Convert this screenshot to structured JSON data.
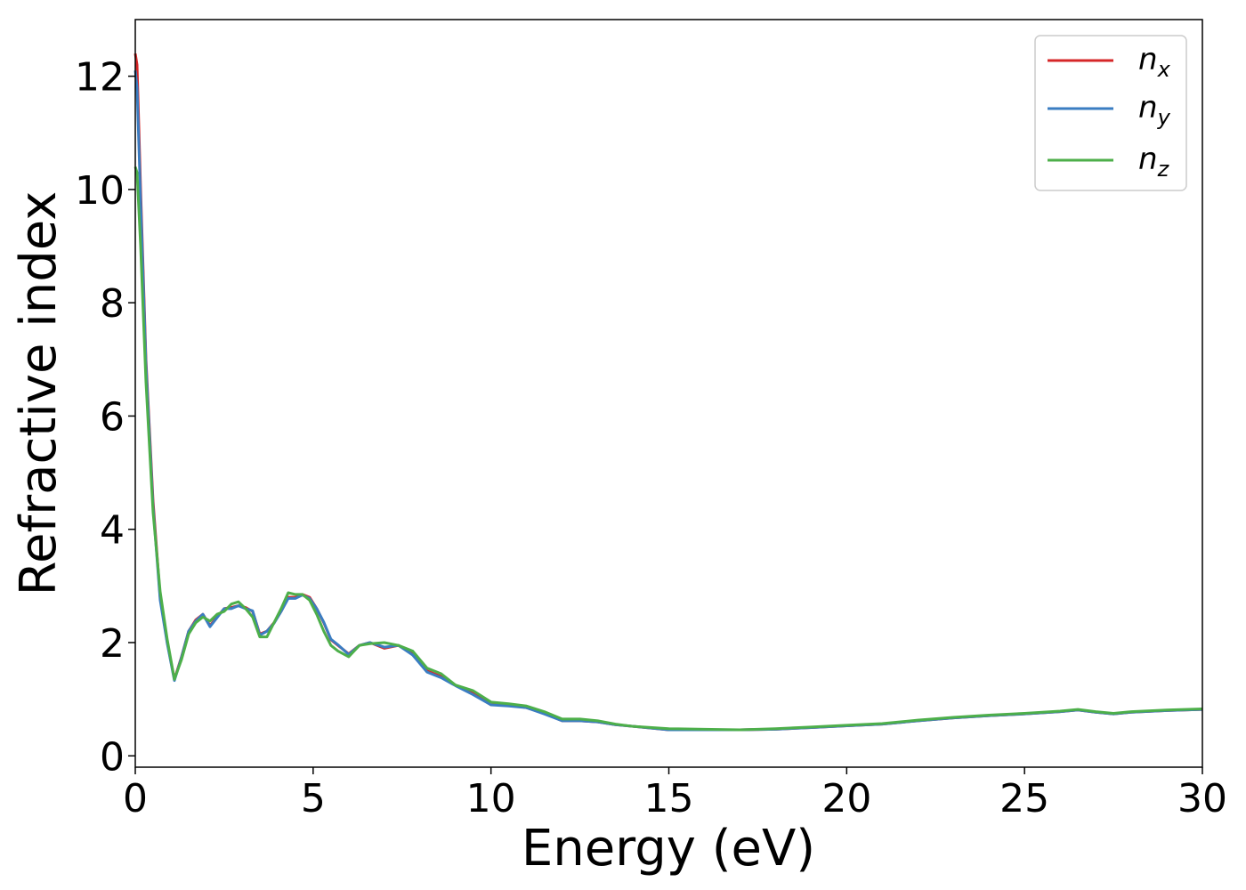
{
  "chart_data": {
    "type": "line",
    "title": "",
    "xlabel": "Energy (eV)",
    "ylabel": "Refractive index",
    "xlim": [
      0,
      30
    ],
    "ylim": [
      -0.2,
      13.0
    ],
    "xticks": [
      0,
      5,
      10,
      15,
      20,
      25,
      30
    ],
    "yticks": [
      0,
      2,
      4,
      6,
      8,
      10,
      12
    ],
    "xtick_labels": [
      "0",
      "5",
      "10",
      "15",
      "20",
      "25",
      "30"
    ],
    "ytick_labels": [
      "0",
      "2",
      "4",
      "6",
      "8",
      "10",
      "12"
    ],
    "grid": false,
    "legend_position": "top-right",
    "series": [
      {
        "name": "n",
        "subscript": "x",
        "color": "#d62728",
        "x": [
          0,
          0.05,
          0.15,
          0.3,
          0.5,
          0.7,
          0.9,
          1.1,
          1.3,
          1.5,
          1.7,
          1.9,
          2.1,
          2.3,
          2.5,
          2.7,
          2.9,
          3.1,
          3.3,
          3.5,
          3.7,
          3.9,
          4.1,
          4.3,
          4.5,
          4.7,
          4.9,
          5.1,
          5.3,
          5.5,
          5.7,
          6.0,
          6.3,
          6.6,
          7.0,
          7.4,
          7.8,
          8.2,
          8.6,
          9.0,
          9.5,
          10.0,
          10.5,
          11.0,
          11.5,
          12.0,
          12.5,
          13.0,
          13.5,
          14.0,
          15.0,
          16.0,
          17.0,
          18.0,
          19.0,
          20.0,
          21.0,
          22.0,
          23.0,
          24.0,
          25.0,
          26.0,
          26.5,
          27.0,
          27.5,
          28.0,
          29.0,
          30.0
        ],
        "y": [
          12.4,
          12.2,
          10.0,
          7.0,
          4.5,
          2.8,
          2.0,
          1.35,
          1.75,
          2.2,
          2.4,
          2.5,
          2.3,
          2.45,
          2.6,
          2.62,
          2.65,
          2.62,
          2.55,
          2.15,
          2.2,
          2.35,
          2.55,
          2.8,
          2.8,
          2.85,
          2.8,
          2.6,
          2.35,
          2.05,
          1.95,
          1.8,
          1.95,
          2.0,
          1.9,
          1.95,
          1.8,
          1.5,
          1.4,
          1.25,
          1.1,
          0.9,
          0.9,
          0.85,
          0.75,
          0.62,
          0.62,
          0.6,
          0.55,
          0.52,
          0.46,
          0.46,
          0.46,
          0.47,
          0.5,
          0.53,
          0.56,
          0.62,
          0.67,
          0.71,
          0.74,
          0.78,
          0.81,
          0.77,
          0.74,
          0.77,
          0.8,
          0.82
        ]
      },
      {
        "name": "n",
        "subscript": "y",
        "color": "#3a7dc2",
        "x": [
          0,
          0.05,
          0.15,
          0.3,
          0.5,
          0.7,
          0.9,
          1.1,
          1.3,
          1.5,
          1.7,
          1.9,
          2.1,
          2.3,
          2.5,
          2.7,
          2.9,
          3.1,
          3.3,
          3.5,
          3.7,
          3.9,
          4.1,
          4.3,
          4.5,
          4.7,
          4.9,
          5.1,
          5.3,
          5.5,
          5.7,
          6.0,
          6.3,
          6.6,
          7.0,
          7.4,
          7.8,
          8.2,
          8.6,
          9.0,
          9.5,
          10.0,
          10.5,
          11.0,
          11.5,
          12.0,
          12.5,
          13.0,
          13.5,
          14.0,
          15.0,
          16.0,
          17.0,
          18.0,
          19.0,
          20.0,
          21.0,
          22.0,
          23.0,
          24.0,
          25.0,
          26.0,
          26.5,
          27.0,
          27.5,
          28.0,
          29.0,
          30.0
        ],
        "y": [
          12.1,
          11.8,
          9.8,
          6.9,
          4.4,
          2.75,
          1.98,
          1.33,
          1.74,
          2.2,
          2.38,
          2.5,
          2.28,
          2.44,
          2.6,
          2.6,
          2.65,
          2.6,
          2.56,
          2.13,
          2.2,
          2.34,
          2.55,
          2.78,
          2.78,
          2.84,
          2.78,
          2.6,
          2.36,
          2.06,
          1.96,
          1.79,
          1.95,
          2.0,
          1.92,
          1.95,
          1.78,
          1.48,
          1.38,
          1.24,
          1.08,
          0.9,
          0.88,
          0.85,
          0.74,
          0.62,
          0.62,
          0.6,
          0.55,
          0.52,
          0.46,
          0.46,
          0.46,
          0.47,
          0.5,
          0.53,
          0.56,
          0.62,
          0.67,
          0.71,
          0.74,
          0.78,
          0.81,
          0.77,
          0.74,
          0.77,
          0.8,
          0.82
        ]
      },
      {
        "name": "n",
        "subscript": "z",
        "color": "#4daf4a",
        "x": [
          0,
          0.05,
          0.15,
          0.3,
          0.5,
          0.7,
          0.9,
          1.1,
          1.3,
          1.5,
          1.7,
          1.9,
          2.1,
          2.3,
          2.5,
          2.7,
          2.9,
          3.1,
          3.3,
          3.5,
          3.7,
          3.9,
          4.1,
          4.3,
          4.5,
          4.7,
          4.9,
          5.1,
          5.3,
          5.5,
          5.7,
          6.0,
          6.3,
          6.6,
          7.0,
          7.4,
          7.8,
          8.2,
          8.6,
          9.0,
          9.5,
          10.0,
          10.5,
          11.0,
          11.5,
          12.0,
          12.5,
          13.0,
          13.5,
          14.0,
          15.0,
          16.0,
          17.0,
          18.0,
          19.0,
          20.0,
          21.0,
          22.0,
          23.0,
          24.0,
          25.0,
          26.0,
          26.5,
          27.0,
          27.5,
          28.0,
          29.0,
          30.0
        ],
        "y": [
          10.4,
          10.3,
          9.0,
          6.6,
          4.3,
          2.9,
          2.05,
          1.35,
          1.7,
          2.15,
          2.35,
          2.45,
          2.38,
          2.5,
          2.55,
          2.68,
          2.72,
          2.6,
          2.45,
          2.1,
          2.1,
          2.35,
          2.6,
          2.88,
          2.85,
          2.85,
          2.75,
          2.5,
          2.2,
          1.95,
          1.85,
          1.75,
          1.95,
          1.98,
          2.0,
          1.95,
          1.85,
          1.55,
          1.45,
          1.25,
          1.15,
          0.95,
          0.92,
          0.88,
          0.78,
          0.65,
          0.65,
          0.62,
          0.56,
          0.52,
          0.48,
          0.47,
          0.46,
          0.48,
          0.51,
          0.54,
          0.57,
          0.63,
          0.68,
          0.72,
          0.75,
          0.79,
          0.82,
          0.78,
          0.75,
          0.78,
          0.81,
          0.83
        ]
      }
    ]
  }
}
